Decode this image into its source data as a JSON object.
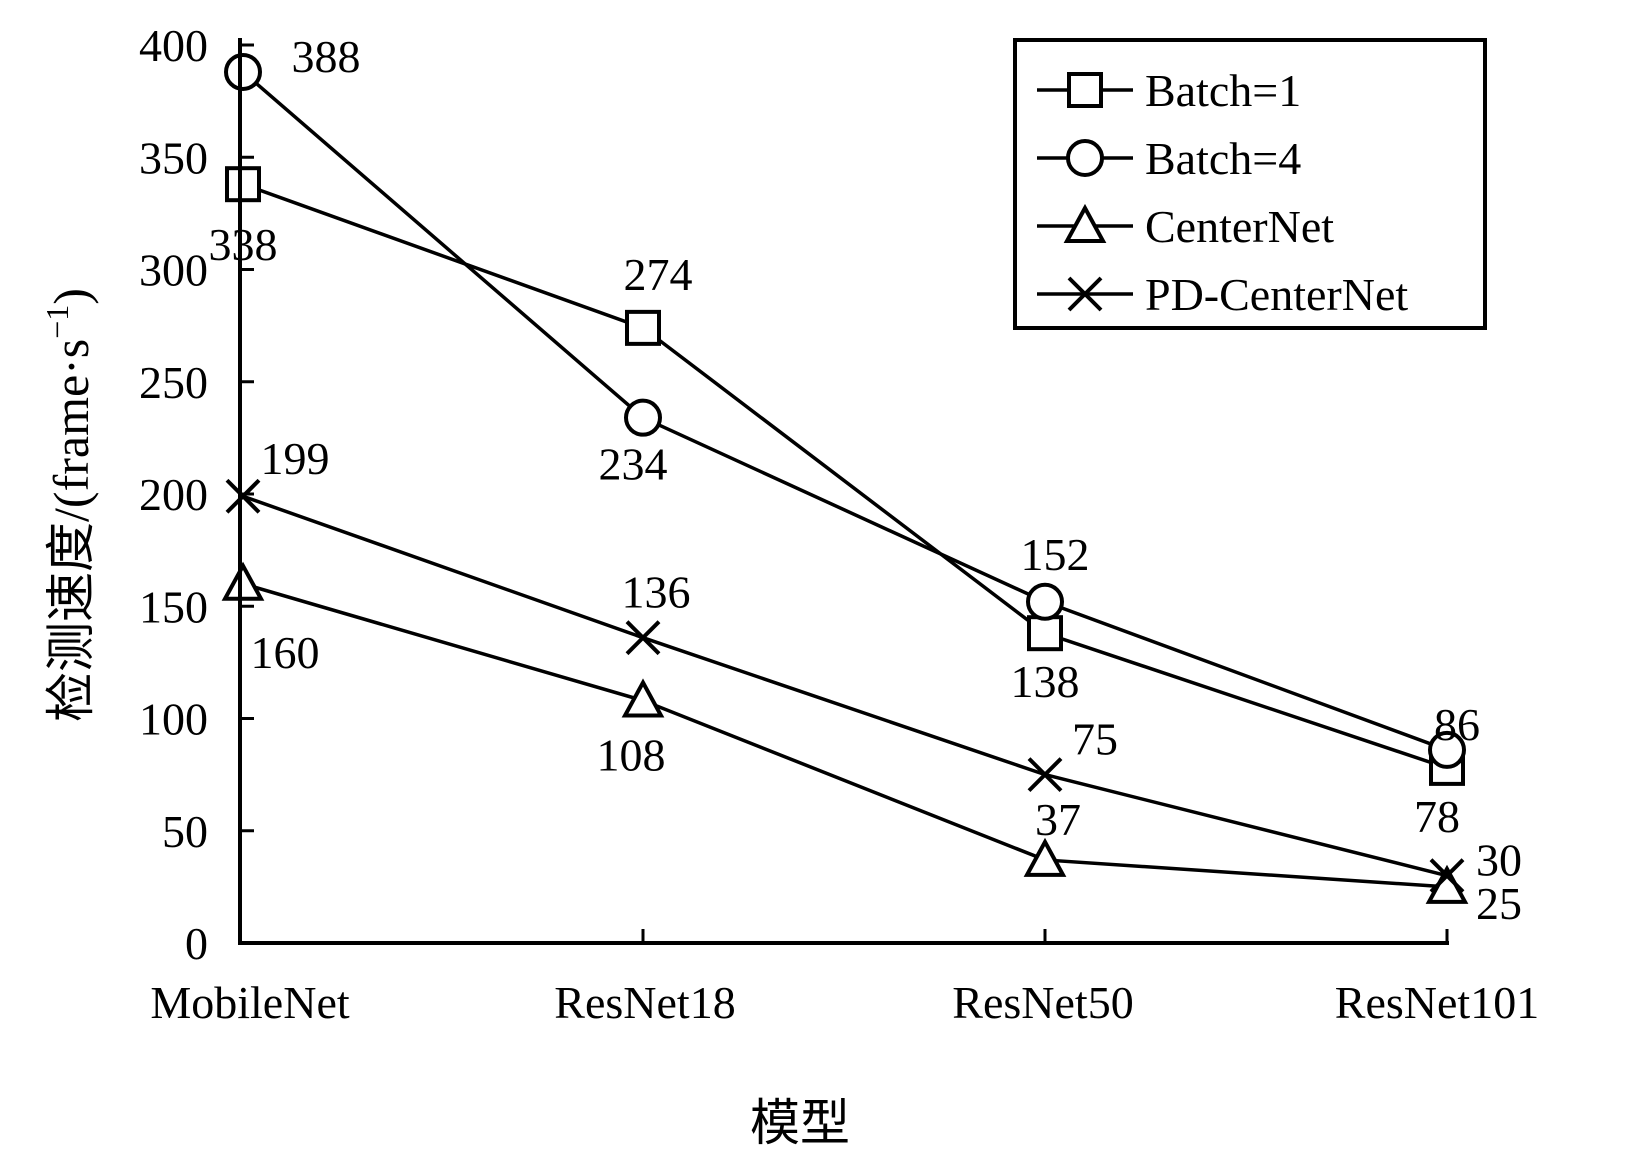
{
  "chart_data": {
    "type": "line",
    "categories": [
      "MobileNet",
      "ResNet18",
      "ResNet50",
      "ResNet101"
    ],
    "ylabel": "检测速度/(frame·s",
    "ylabel_sup": "−1",
    "ylabel_close": ")",
    "xlabel": "模型",
    "ylim": [
      0,
      400
    ],
    "yticks": [
      "0",
      "50",
      "100",
      "150",
      "200",
      "250",
      "300",
      "350",
      "400"
    ],
    "legend_position": "top-right",
    "series": [
      {
        "name": "Batch=1",
        "marker": "square",
        "values": [
          338,
          274,
          138,
          78
        ],
        "labels": [
          "338",
          "274",
          "138",
          "78"
        ]
      },
      {
        "name": "Batch=4",
        "marker": "circle",
        "values": [
          388,
          234,
          152,
          86
        ],
        "labels": [
          "388",
          "234",
          "152",
          "86"
        ]
      },
      {
        "name": "CenterNet",
        "marker": "triangle",
        "values": [
          160,
          108,
          37,
          25
        ],
        "labels": [
          "160",
          "108",
          "37",
          "25"
        ]
      },
      {
        "name": "PD-CenterNet",
        "marker": "cross",
        "values": [
          199,
          136,
          75,
          30
        ],
        "labels": [
          "199",
          "136",
          "75",
          "30"
        ]
      }
    ]
  }
}
